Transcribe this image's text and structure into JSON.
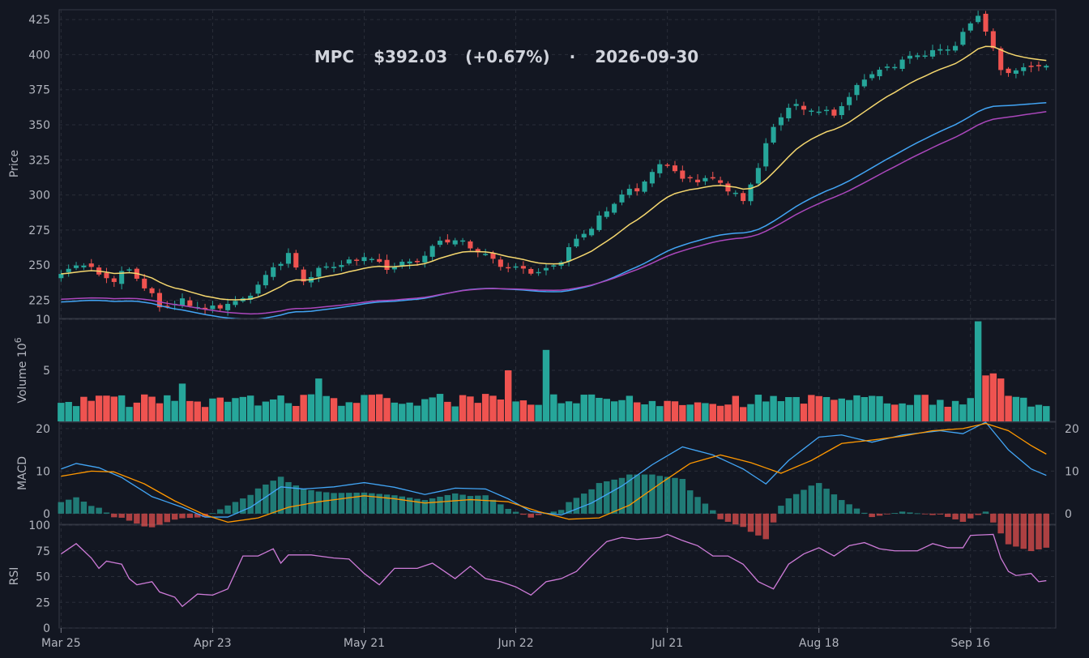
{
  "title": {
    "ticker": "MPC",
    "price": "$392.03",
    "change": "(+0.67%)",
    "separator": "·",
    "date": "2026-09-30"
  },
  "colors": {
    "background": "#131722",
    "up": "#26a69a",
    "down": "#ef5350",
    "ma_fast": "#f5d76e",
    "ma_mid": "#42a5f5",
    "ma_slow": "#ab47bc",
    "macd": "#42a5f5",
    "signal": "#ff9800",
    "rsi": "#ce7bd8",
    "grid": "#2a2e39",
    "text": "#b2b5be"
  },
  "chart_data": [
    {
      "type": "candlestick",
      "ylabel": "Price",
      "ylim": [
        212,
        432
      ],
      "yticks": [
        225,
        250,
        275,
        300,
        325,
        350,
        375,
        400,
        425
      ],
      "x_tick_labels": [
        "Mar 25",
        "Apr 23",
        "May 21",
        "Jun 22",
        "Jul 21",
        "Aug 18",
        "Sep 16"
      ],
      "x_tick_index": [
        0,
        20,
        40,
        60,
        80,
        100,
        120
      ],
      "grid": true,
      "close_path": [
        [
          0,
          242
        ],
        [
          3,
          252
        ],
        [
          5,
          244
        ],
        [
          7,
          240
        ],
        [
          9,
          246
        ],
        [
          11,
          234
        ],
        [
          13,
          222
        ],
        [
          16,
          224
        ],
        [
          19,
          217
        ],
        [
          21,
          222
        ],
        [
          24,
          226
        ],
        [
          26,
          234
        ],
        [
          28,
          248
        ],
        [
          30,
          258
        ],
        [
          32,
          240
        ],
        [
          35,
          248
        ],
        [
          37,
          250
        ],
        [
          40,
          258
        ],
        [
          43,
          247
        ],
        [
          46,
          252
        ],
        [
          48,
          258
        ],
        [
          50,
          268
        ],
        [
          53,
          265
        ],
        [
          56,
          258
        ],
        [
          59,
          248
        ],
        [
          61,
          246
        ],
        [
          63,
          244
        ],
        [
          66,
          255
        ],
        [
          68,
          268
        ],
        [
          70,
          276
        ],
        [
          72,
          289
        ],
        [
          74,
          302
        ],
        [
          76,
          304
        ],
        [
          78,
          315
        ],
        [
          80,
          323
        ],
        [
          82,
          312
        ],
        [
          84,
          312
        ],
        [
          86,
          310
        ],
        [
          88,
          304
        ],
        [
          90,
          296
        ],
        [
          92,
          322
        ],
        [
          94,
          348
        ],
        [
          96,
          362
        ],
        [
          99,
          362
        ],
        [
          102,
          358
        ],
        [
          104,
          368
        ],
        [
          106,
          384
        ],
        [
          109,
          392
        ],
        [
          112,
          397
        ],
        [
          115,
          402
        ],
        [
          118,
          408
        ],
        [
          121,
          428
        ],
        [
          124,
          390
        ],
        [
          126,
          389
        ],
        [
          128,
          392
        ],
        [
          129,
          392.03
        ]
      ],
      "ma_periods": [
        20,
        50,
        200
      ],
      "markers_per_series": "one candle per trading day"
    },
    {
      "type": "bar",
      "ylabel": "Volume",
      "scale_label": "10^6",
      "ylim": [
        0,
        10
      ],
      "yticks": [
        5,
        10
      ],
      "notable_values": [
        {
          "index": 16,
          "value": 3.7
        },
        {
          "index": 34,
          "value": 4.2
        },
        {
          "index": 59,
          "value": 5.0
        },
        {
          "index": 64,
          "value": 7.0
        },
        {
          "index": 121,
          "value": 9.8
        },
        {
          "index": 122,
          "value": 4.5
        },
        {
          "index": 123,
          "value": 4.7
        },
        {
          "index": 124,
          "value": 4.2
        }
      ]
    },
    {
      "type": "line",
      "ylabel": "MACD",
      "series": [
        {
          "values_desc": "MACD line"
        },
        {
          "values_desc": "signal line"
        },
        {
          "values_desc": "histogram"
        }
      ],
      "left_ylim": [
        -2.5,
        21.5
      ],
      "left_yticks": [
        0,
        10,
        20
      ],
      "right_ylim": [
        -2.5,
        21.5
      ],
      "right_yticks": [
        0,
        10,
        20
      ],
      "macd_path": [
        [
          0,
          10.5
        ],
        [
          2,
          11.8
        ],
        [
          5,
          10.8
        ],
        [
          8,
          8.5
        ],
        [
          12,
          4
        ],
        [
          16,
          1.5
        ],
        [
          19,
          -0.8
        ],
        [
          22,
          -0.8
        ],
        [
          25,
          1.5
        ],
        [
          29,
          6.3
        ],
        [
          32,
          5.8
        ],
        [
          36,
          6.3
        ],
        [
          40,
          7.3
        ],
        [
          44,
          6.2
        ],
        [
          48,
          4.5
        ],
        [
          52,
          6
        ],
        [
          56,
          5.8
        ],
        [
          59,
          3.5
        ],
        [
          62,
          0.5
        ],
        [
          66,
          -0.3
        ],
        [
          70,
          2.5
        ],
        [
          74,
          6.5
        ],
        [
          78,
          11.5
        ],
        [
          82,
          15.7
        ],
        [
          86,
          13.8
        ],
        [
          90,
          10.5
        ],
        [
          93,
          7
        ],
        [
          96,
          12.5
        ],
        [
          100,
          18
        ],
        [
          103,
          18.5
        ],
        [
          107,
          16.8
        ],
        [
          111,
          18.5
        ],
        [
          116,
          19.5
        ],
        [
          119,
          18.8
        ],
        [
          122,
          21.5
        ],
        [
          125,
          15
        ],
        [
          128,
          10.5
        ],
        [
          130,
          9
        ]
      ],
      "signal_path": [
        [
          0,
          8.8
        ],
        [
          4,
          10
        ],
        [
          7,
          9.8
        ],
        [
          11,
          7
        ],
        [
          15,
          3
        ],
        [
          19,
          -0.3
        ],
        [
          22,
          -2
        ],
        [
          26,
          -1
        ],
        [
          30,
          1.5
        ],
        [
          34,
          2.8
        ],
        [
          40,
          4.2
        ],
        [
          44,
          3.5
        ],
        [
          48,
          2.5
        ],
        [
          54,
          3.3
        ],
        [
          59,
          2.8
        ],
        [
          63,
          0.5
        ],
        [
          67,
          -1.3
        ],
        [
          71,
          -1
        ],
        [
          75,
          2
        ],
        [
          79,
          7
        ],
        [
          83,
          11.8
        ],
        [
          87,
          13.8
        ],
        [
          91,
          12
        ],
        [
          95,
          9.5
        ],
        [
          99,
          12.5
        ],
        [
          103,
          16.5
        ],
        [
          107,
          17.3
        ],
        [
          111,
          18.2
        ],
        [
          115,
          19.5
        ],
        [
          119,
          20
        ],
        [
          122,
          21.2
        ],
        [
          125,
          19.5
        ],
        [
          128,
          16
        ],
        [
          130,
          14
        ]
      ]
    },
    {
      "type": "line",
      "ylabel": "RSI",
      "ylim": [
        0,
        100
      ],
      "yticks": [
        0,
        25,
        50,
        75,
        100
      ],
      "rsi_path": [
        [
          0,
          72
        ],
        [
          2,
          82
        ],
        [
          4,
          68
        ],
        [
          5,
          58
        ],
        [
          6,
          65
        ],
        [
          8,
          62
        ],
        [
          9,
          48
        ],
        [
          10,
          42
        ],
        [
          12,
          45
        ],
        [
          13,
          35
        ],
        [
          15,
          30
        ],
        [
          16,
          21
        ],
        [
          18,
          33
        ],
        [
          20,
          32
        ],
        [
          22,
          38
        ],
        [
          24,
          70
        ],
        [
          26,
          70
        ],
        [
          28,
          77
        ],
        [
          29,
          63
        ],
        [
          30,
          71
        ],
        [
          33,
          71
        ],
        [
          36,
          68
        ],
        [
          38,
          67
        ],
        [
          40,
          53
        ],
        [
          42,
          42
        ],
        [
          44,
          58
        ],
        [
          47,
          58
        ],
        [
          49,
          63
        ],
        [
          52,
          48
        ],
        [
          54,
          60
        ],
        [
          56,
          48
        ],
        [
          58,
          45
        ],
        [
          60,
          40
        ],
        [
          62,
          32
        ],
        [
          64,
          45
        ],
        [
          66,
          48
        ],
        [
          68,
          55
        ],
        [
          70,
          70
        ],
        [
          72,
          84
        ],
        [
          74,
          88
        ],
        [
          76,
          86
        ],
        [
          79,
          88
        ],
        [
          80,
          91
        ],
        [
          82,
          85
        ],
        [
          84,
          80
        ],
        [
          86,
          70
        ],
        [
          88,
          70
        ],
        [
          90,
          62
        ],
        [
          92,
          45
        ],
        [
          94,
          38
        ],
        [
          96,
          62
        ],
        [
          98,
          72
        ],
        [
          100,
          78
        ],
        [
          102,
          70
        ],
        [
          104,
          80
        ],
        [
          106,
          83
        ],
        [
          108,
          77
        ],
        [
          110,
          75
        ],
        [
          113,
          75
        ],
        [
          115,
          82
        ],
        [
          117,
          78
        ],
        [
          119,
          78
        ],
        [
          120,
          90
        ],
        [
          123,
          91
        ],
        [
          124,
          68
        ],
        [
          125,
          55
        ],
        [
          126,
          51
        ],
        [
          128,
          53
        ],
        [
          129,
          45
        ],
        [
          130,
          46
        ]
      ]
    }
  ]
}
